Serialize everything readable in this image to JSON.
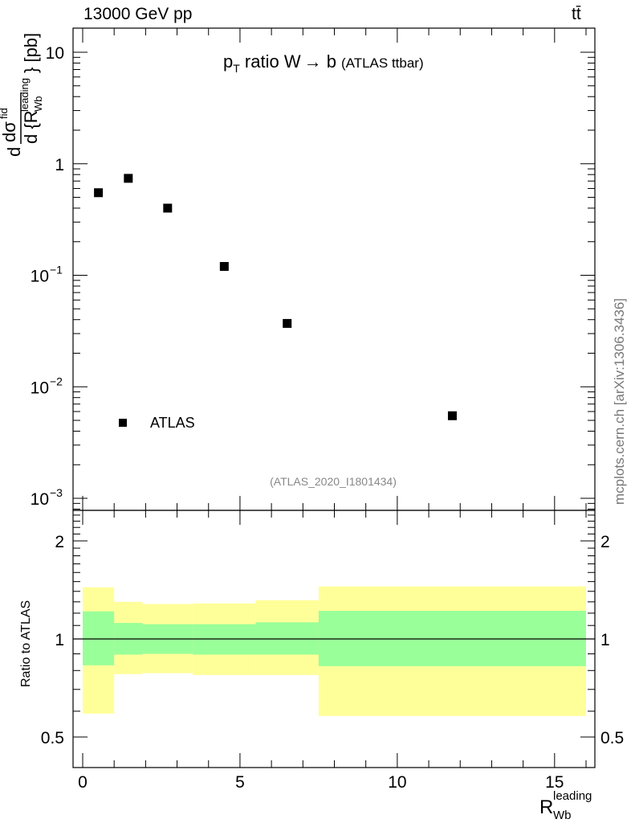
{
  "header": {
    "energy_label": "13000 GeV pp",
    "process_label": "tt̄",
    "side_note": "mcplots.cern.ch [arXiv:1306.3436]"
  },
  "chart_data": [
    {
      "type": "scatter",
      "panel": "main",
      "title": "p_T ratio W → b (ATLAS ttbar)",
      "title_parts": {
        "p": "p",
        "T": "T",
        "rest": " ratio W",
        "arrow": "→",
        "b": " b",
        "paren": "(ATLAS ttbar)"
      },
      "ylabel_parts": {
        "d": "d",
        "numer": "dσ",
        "fid": "fid",
        "denom": "d {R",
        "sub": "Wb",
        "sup": "leading",
        "close": "} [pb]"
      },
      "yscale": "log",
      "ylim": [
        0.001,
        10
      ],
      "yticks": [
        {
          "value": 10,
          "label": "10",
          "exp": ""
        },
        {
          "value": 1,
          "label": "1",
          "exp": ""
        },
        {
          "value": 0.1,
          "label": "10",
          "exp": "−1"
        },
        {
          "value": 0.01,
          "label": "10",
          "exp": "−2"
        },
        {
          "value": 0.001,
          "label": "10",
          "exp": "−3"
        }
      ],
      "series": [
        {
          "name": "ATLAS",
          "color": "#000000",
          "marker": "square",
          "x": [
            0.5,
            1.45,
            2.7,
            4.5,
            6.5,
            11.75
          ],
          "y": [
            0.55,
            0.74,
            0.4,
            0.12,
            0.037,
            0.0055
          ]
        }
      ],
      "legend": {
        "label": "ATLAS",
        "placement": "bottom-left"
      },
      "annotation": "(ATLAS_2020_I1801434)"
    },
    {
      "type": "area",
      "panel": "ratio",
      "ylabel": "Ratio to ATLAS",
      "yscale": "log",
      "ylim": [
        0.4,
        2.4
      ],
      "yticks": [
        {
          "value": 0.5,
          "label": "0.5"
        },
        {
          "value": 1,
          "label": "1"
        },
        {
          "value": 2,
          "label": "2"
        }
      ],
      "xlabel_parts": {
        "R": "R",
        "sub": "Wb",
        "sup": "leading"
      },
      "xlim": [
        -0.5,
        16.3
      ],
      "xticks": [
        {
          "value": 0,
          "label": "0"
        },
        {
          "value": 5,
          "label": "5"
        },
        {
          "value": 10,
          "label": "10"
        },
        {
          "value": 15,
          "label": "15"
        }
      ],
      "reference_line": 1,
      "bin_edges": [
        0,
        1,
        1.9,
        3.5,
        5.5,
        7.5,
        16
      ],
      "series": [
        {
          "name": "",
          "color": "#ffff99",
          "lower": [
            0.59,
            0.78,
            0.785,
            0.775,
            0.775,
            0.58
          ],
          "upper": [
            1.44,
            1.3,
            1.28,
            1.285,
            1.315,
            1.45
          ]
        },
        {
          "name": "",
          "color": "#99ff99",
          "lower": [
            0.83,
            0.895,
            0.9,
            0.895,
            0.895,
            0.825
          ],
          "upper": [
            1.215,
            1.12,
            1.11,
            1.11,
            1.125,
            1.22
          ]
        }
      ]
    }
  ]
}
